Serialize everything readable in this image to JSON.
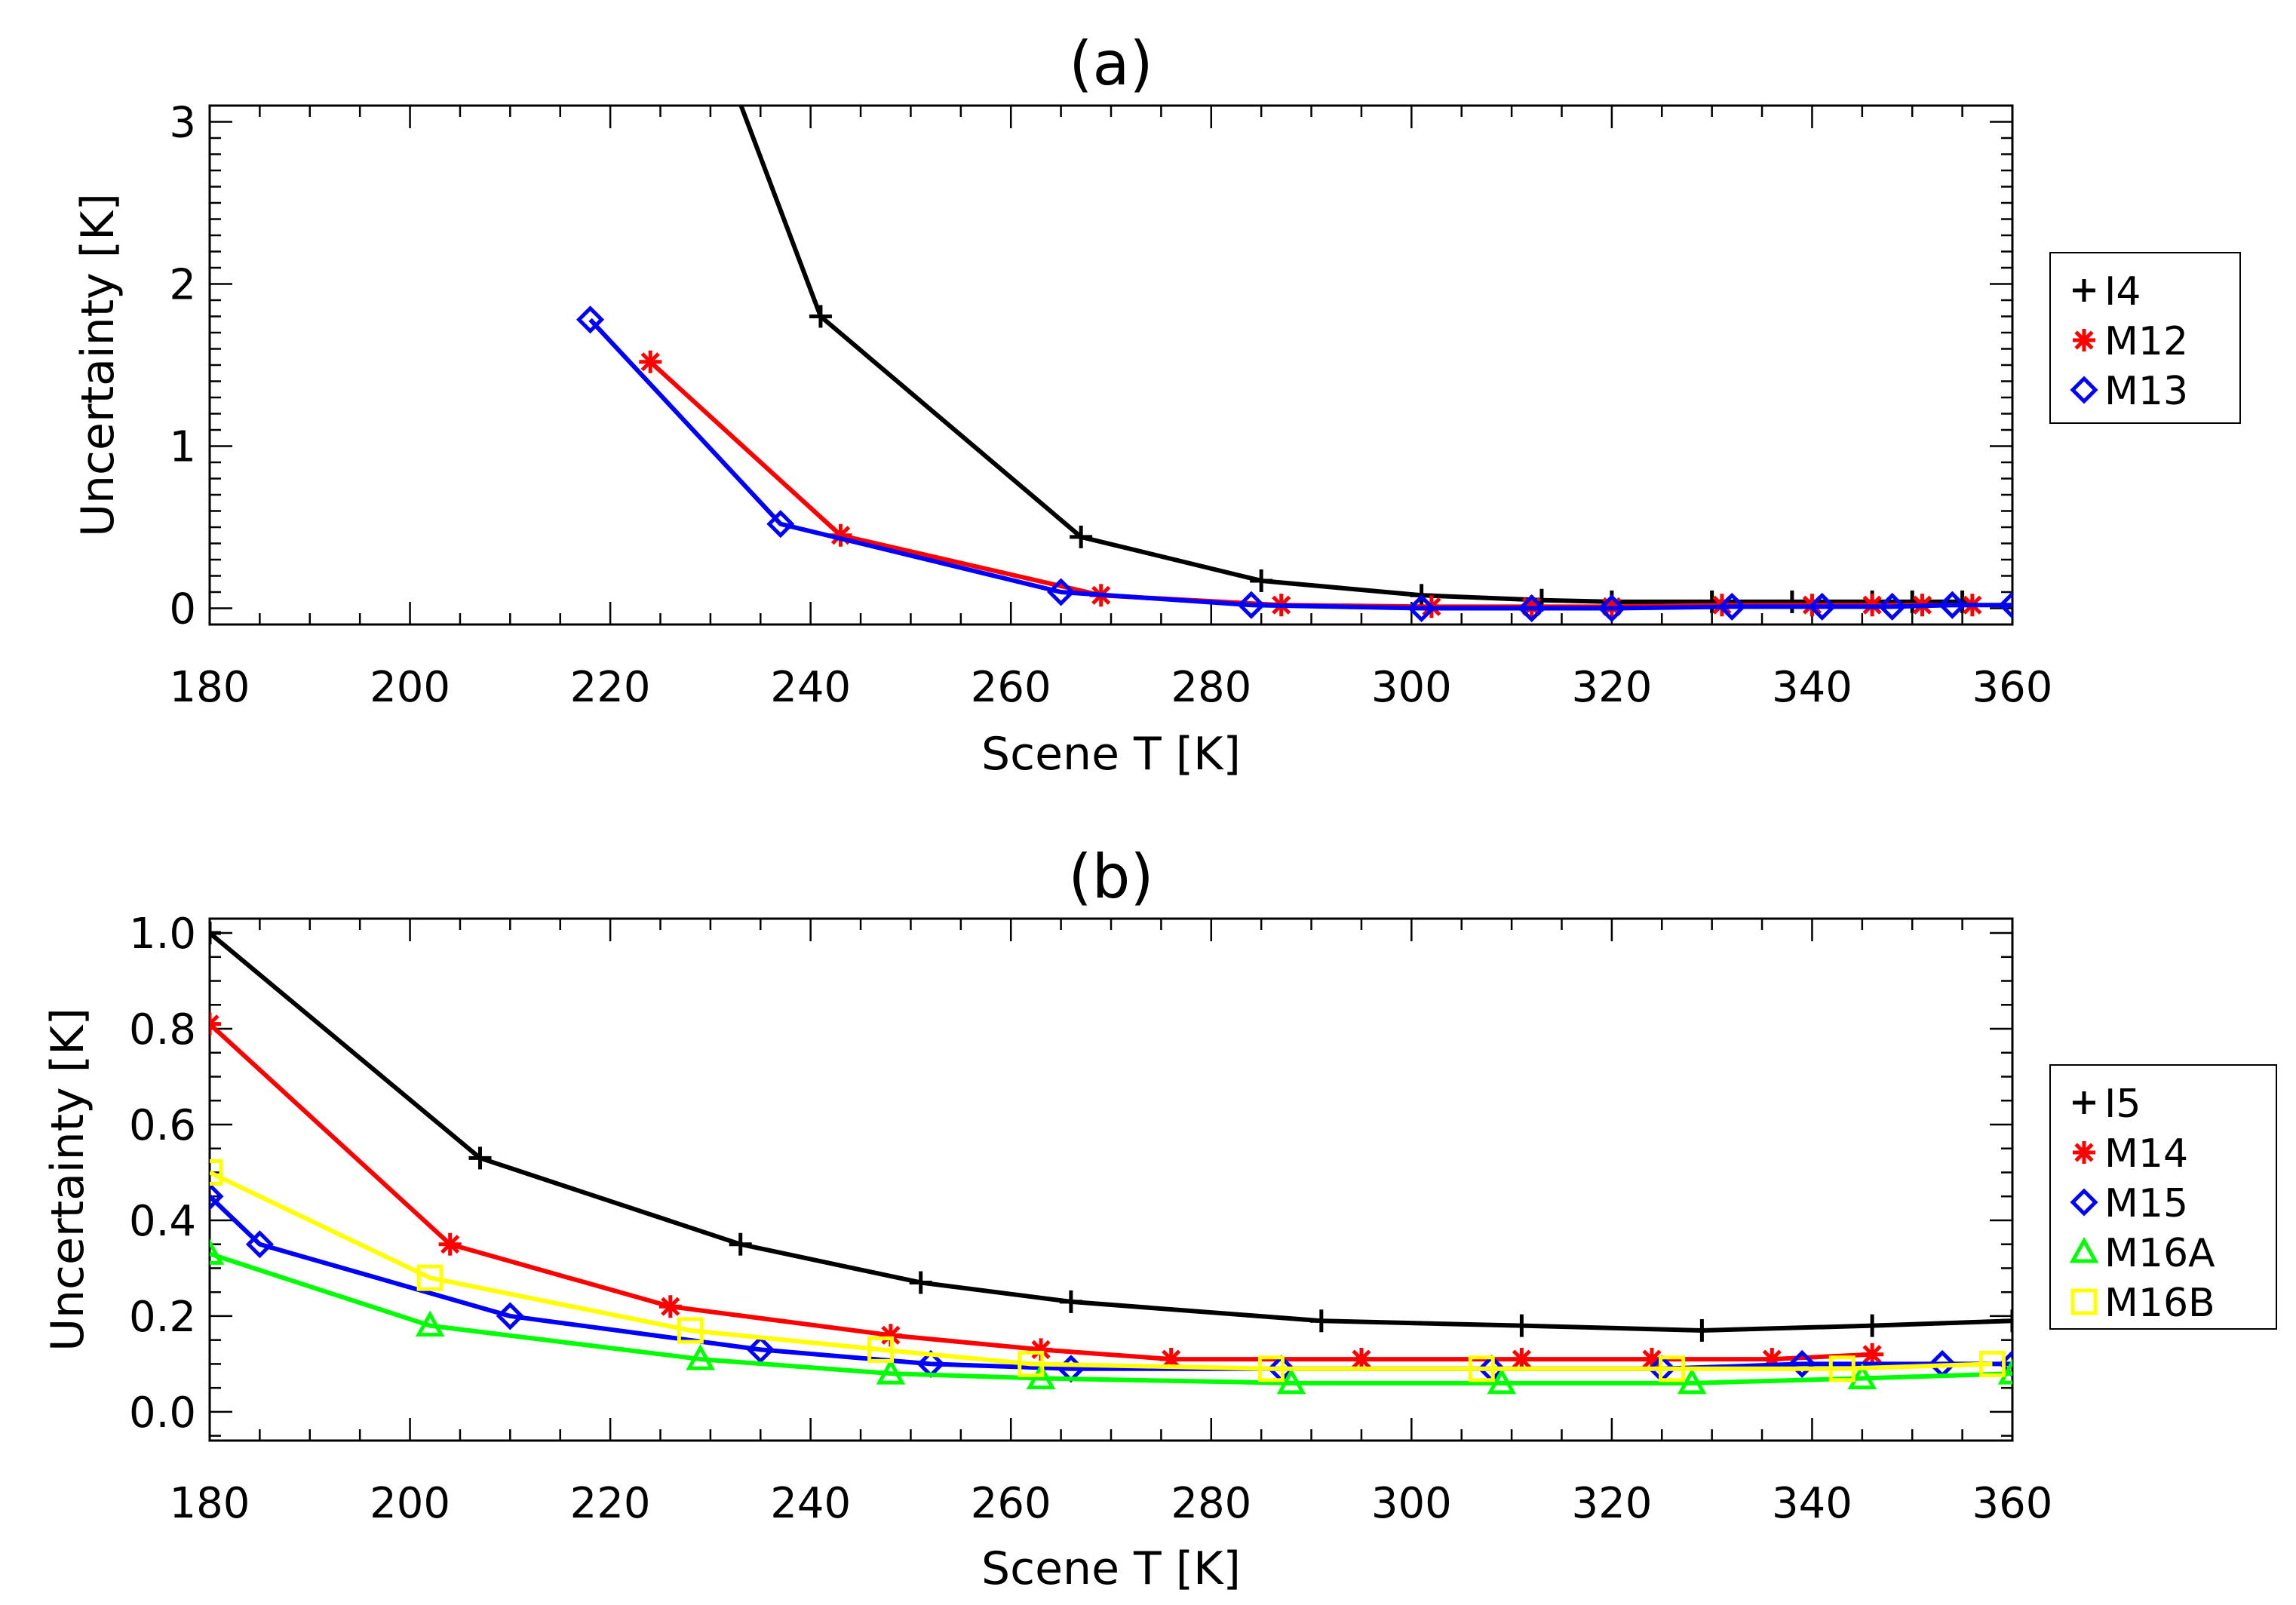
{
  "chart_data": [
    {
      "type": "line",
      "title": "(a)",
      "xlabel": "Scene T [K]",
      "ylabel": "Uncertainty [K]",
      "xlim": [
        180,
        360
      ],
      "ylim": [
        -0.1,
        3.1
      ],
      "xticks": [
        180,
        200,
        220,
        240,
        260,
        280,
        300,
        320,
        340,
        360
      ],
      "xtick_labels": [
        "180",
        "200",
        "220",
        "240",
        "260",
        "280",
        "300",
        "320",
        "340",
        "360"
      ],
      "yticks": [
        0,
        1,
        2,
        3
      ],
      "ytick_labels": [
        "0",
        "1",
        "2",
        "3"
      ],
      "legend": "right",
      "series": [
        {
          "name": "I4",
          "color": "#000000",
          "marker": "plus",
          "x": [
            230,
            241,
            267,
            285,
            301,
            313,
            320,
            330,
            338,
            346,
            350,
            355
          ],
          "y": [
            3.6,
            1.8,
            0.44,
            0.17,
            0.08,
            0.05,
            0.04,
            0.04,
            0.04,
            0.04,
            0.04,
            0.04
          ]
        },
        {
          "name": "M12",
          "color": "#ff0000",
          "marker": "asterisk",
          "x": [
            224,
            243,
            269,
            287,
            302,
            312,
            320,
            331,
            340,
            346,
            351,
            356
          ],
          "y": [
            1.52,
            0.45,
            0.08,
            0.02,
            0.01,
            0.01,
            0.01,
            0.02,
            0.02,
            0.02,
            0.02,
            0.02
          ]
        },
        {
          "name": "M13",
          "color": "#0000ff",
          "marker": "diamond",
          "x": [
            218,
            237,
            265,
            284,
            301,
            312,
            320,
            332,
            341,
            348,
            354,
            360
          ],
          "y": [
            1.78,
            0.52,
            0.1,
            0.02,
            0.0,
            0.0,
            0.0,
            0.01,
            0.01,
            0.01,
            0.02,
            0.02
          ]
        }
      ]
    },
    {
      "type": "line",
      "title": "(b)",
      "xlabel": "Scene T [K]",
      "ylabel": "Uncertainty [K]",
      "xlim": [
        180,
        360
      ],
      "ylim": [
        -0.06,
        1.03
      ],
      "xticks": [
        180,
        200,
        220,
        240,
        260,
        280,
        300,
        320,
        340,
        360
      ],
      "xtick_labels": [
        "180",
        "200",
        "220",
        "240",
        "260",
        "280",
        "300",
        "320",
        "340",
        "360"
      ],
      "yticks": [
        0.0,
        0.2,
        0.4,
        0.6,
        0.8,
        1.0
      ],
      "ytick_labels": [
        "0.0",
        "0.2",
        "0.4",
        "0.6",
        "0.8",
        "1.0"
      ],
      "legend": "right",
      "series": [
        {
          "name": "I5",
          "color": "#000000",
          "marker": "plus",
          "x": [
            180,
            207,
            233,
            251,
            266,
            291,
            311,
            329,
            346,
            360
          ],
          "y": [
            1.0,
            0.53,
            0.35,
            0.27,
            0.23,
            0.19,
            0.18,
            0.17,
            0.18,
            0.19
          ]
        },
        {
          "name": "M14",
          "color": "#ff0000",
          "marker": "asterisk",
          "x": [
            180,
            204,
            226,
            248,
            263,
            276,
            295,
            311,
            324,
            336,
            346
          ],
          "y": [
            0.81,
            0.35,
            0.22,
            0.16,
            0.13,
            0.11,
            0.11,
            0.11,
            0.11,
            0.11,
            0.12
          ]
        },
        {
          "name": "M15",
          "color": "#0000ff",
          "marker": "diamond",
          "x": [
            180,
            185,
            210,
            235,
            252,
            266,
            287,
            308,
            325,
            339,
            353,
            360
          ],
          "y": [
            0.45,
            0.35,
            0.2,
            0.13,
            0.1,
            0.09,
            0.09,
            0.09,
            0.09,
            0.1,
            0.1,
            0.1
          ]
        },
        {
          "name": "M16A",
          "color": "#00ff00",
          "marker": "triangle",
          "x": [
            180,
            202,
            229,
            248,
            263,
            288,
            309,
            328,
            345,
            360
          ],
          "y": [
            0.33,
            0.18,
            0.11,
            0.08,
            0.07,
            0.06,
            0.06,
            0.06,
            0.07,
            0.08
          ]
        },
        {
          "name": "M16B",
          "color": "#ffff00",
          "marker": "square",
          "x": [
            180,
            202,
            228,
            247,
            262,
            286,
            307,
            326,
            343,
            358
          ],
          "y": [
            0.5,
            0.28,
            0.17,
            0.13,
            0.1,
            0.09,
            0.09,
            0.09,
            0.09,
            0.1
          ]
        }
      ]
    }
  ]
}
